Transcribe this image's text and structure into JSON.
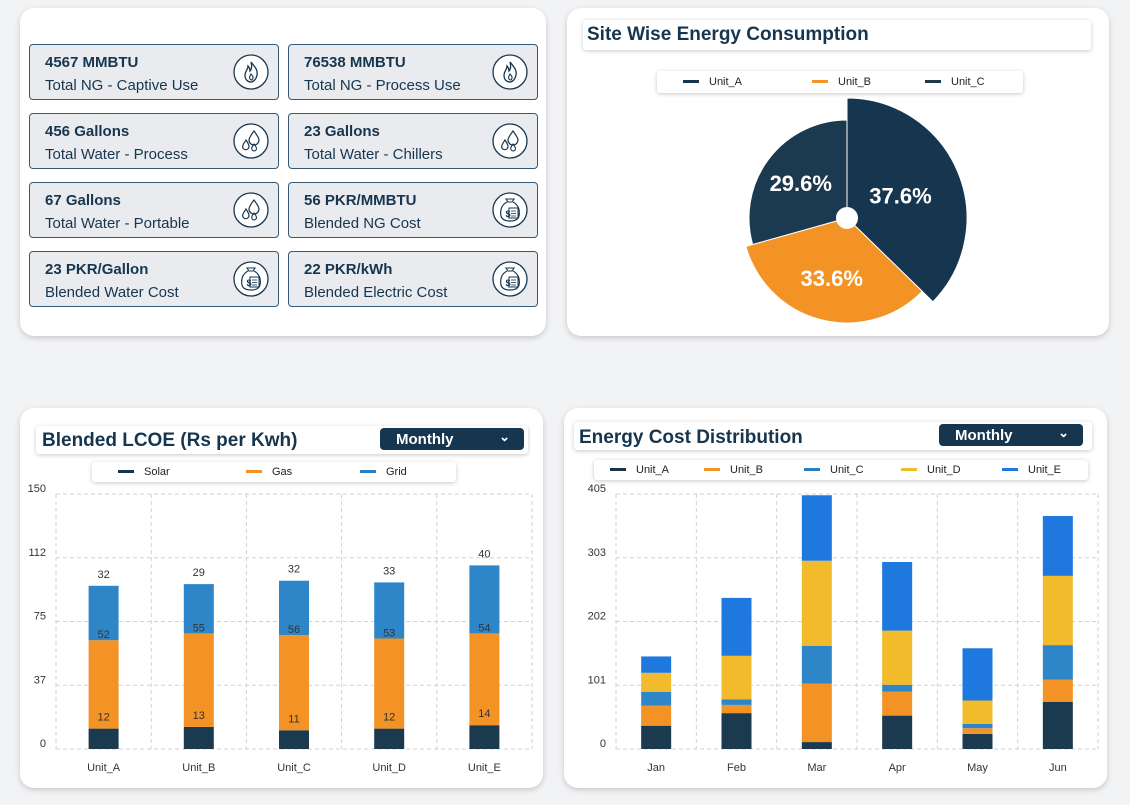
{
  "kpis": [
    {
      "value": "4567 MMBTU",
      "label": "Total NG - Captive Use",
      "icon": "flame-icon"
    },
    {
      "value": "76538 MMBTU",
      "label": "Total NG - Process Use",
      "icon": "flame-icon"
    },
    {
      "value": "456 Gallons",
      "label": "Total Water - Process",
      "icon": "water-drops-icon"
    },
    {
      "value": "23 Gallons",
      "label": "Total Water - Chillers",
      "icon": "water-drops-icon"
    },
    {
      "value": "67 Gallons",
      "label": "Total Water - Portable",
      "icon": "water-drops-icon"
    },
    {
      "value": "56 PKR/MMBTU",
      "label": "Blended NG Cost",
      "icon": "money-bag-icon"
    },
    {
      "value": "23 PKR/Gallon",
      "label": "Blended Water Cost",
      "icon": "money-bag-icon"
    },
    {
      "value": "22 PKR/kWh",
      "label": "Blended Electric Cost",
      "icon": "money-bag-icon"
    }
  ],
  "pie": {
    "title": "Site Wise Energy Consumption",
    "legend": [
      "Unit_A",
      "Unit_B",
      "Unit_C"
    ]
  },
  "lcoe": {
    "title": "Blended LCOE (Rs per Kwh)",
    "dropdown": "Monthly",
    "legend": [
      "Solar",
      "Gas",
      "Grid"
    ]
  },
  "cost": {
    "title": "Energy Cost Distribution",
    "dropdown": "Monthly",
    "legend": [
      "Unit_A",
      "Unit_B",
      "Unit_C",
      "Unit_D",
      "Unit_E"
    ]
  },
  "colors": {
    "navy": "#163650",
    "orange": "#f39325",
    "blue": "#2a7fc0",
    "dark_slate": "#1c3a4f",
    "yellow": "#f2bb2b",
    "bright_blue": "#1f78dd",
    "mid_blue": "#2e86c9"
  },
  "chart_data": [
    {
      "type": "pie",
      "title": "Site Wise Energy Consumption",
      "labels": [
        "Unit_A",
        "Unit_B",
        "Unit_C"
      ],
      "values": [
        37.6,
        33.6,
        29.6
      ],
      "data_labels": [
        "37.6%",
        "33.6%",
        "29.6%"
      ],
      "legend": "top"
    },
    {
      "type": "bar",
      "stacked": true,
      "title": "Blended LCOE (Rs per Kwh)",
      "categories": [
        "Unit_A",
        "Unit_B",
        "Unit_C",
        "Unit_D",
        "Unit_E"
      ],
      "series": [
        {
          "name": "Solar",
          "values": [
            12,
            13,
            11,
            12,
            14
          ]
        },
        {
          "name": "Gas",
          "values": [
            52,
            55,
            56,
            53,
            54
          ]
        },
        {
          "name": "Grid",
          "values": [
            32,
            29,
            32,
            33,
            40
          ]
        }
      ],
      "yticks": [
        "0",
        "37",
        "75",
        "112",
        "150"
      ],
      "ylim": [
        0,
        150
      ],
      "grid": true,
      "legend": "top"
    },
    {
      "type": "bar",
      "stacked": true,
      "title": "Energy Cost Distribution",
      "categories": [
        "Jan",
        "Feb",
        "Mar",
        "Apr",
        "May",
        "Jun"
      ],
      "series": [
        {
          "name": "Unit_A",
          "values": [
            37,
            57,
            11,
            53,
            24,
            75
          ]
        },
        {
          "name": "Unit_B",
          "values": [
            32,
            13,
            93,
            38,
            9,
            35
          ]
        },
        {
          "name": "Unit_C",
          "values": [
            22,
            9,
            60,
            11,
            7,
            55
          ]
        },
        {
          "name": "Unit_D",
          "values": [
            30,
            69,
            135,
            86,
            37,
            110
          ]
        },
        {
          "name": "Unit_E",
          "values": [
            26,
            92,
            104,
            109,
            83,
            95
          ]
        }
      ],
      "yticks": [
        "0",
        "101",
        "202",
        "303",
        "405"
      ],
      "ylim": [
        0,
        405
      ],
      "grid": true,
      "legend": "top"
    }
  ]
}
